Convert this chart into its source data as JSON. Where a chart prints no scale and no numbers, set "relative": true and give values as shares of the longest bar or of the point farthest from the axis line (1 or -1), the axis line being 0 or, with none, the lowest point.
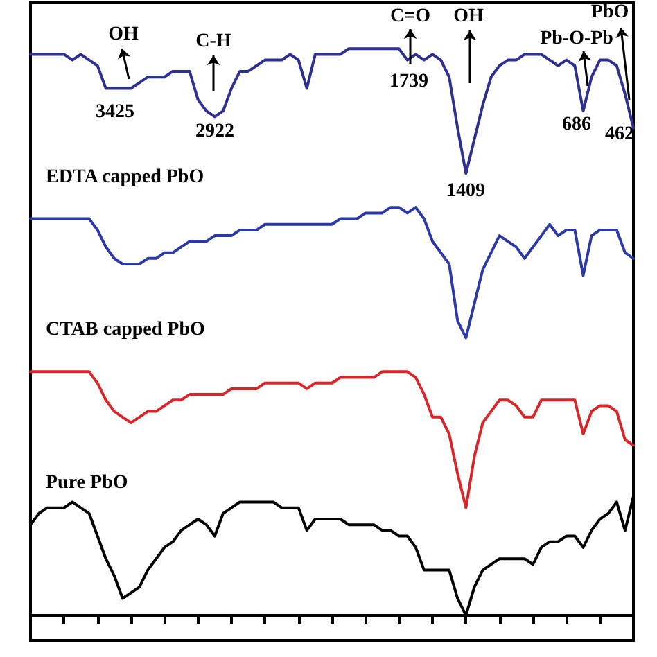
{
  "chart_data": {
    "type": "line",
    "relative": true,
    "categories": [
      null,
      null,
      null,
      null,
      null,
      null,
      null,
      null,
      null,
      null,
      null,
      null,
      null,
      null,
      null,
      null,
      null,
      null,
      null,
      null,
      null,
      null,
      null,
      null,
      null,
      null,
      null,
      null,
      null,
      null,
      null,
      null,
      null,
      null,
      null,
      null,
      null,
      null,
      null,
      null,
      null,
      null,
      null,
      null,
      null,
      null,
      null,
      null,
      null,
      null,
      null,
      null,
      null,
      null,
      null,
      null,
      null,
      null,
      null,
      null,
      null,
      null,
      null,
      null,
      null,
      null,
      null,
      null,
      null,
      null,
      null,
      null,
      null
    ],
    "grid": false,
    "legend": false,
    "line_style": "solid",
    "series": [
      {
        "color": "#2e3192",
        "values": [
          0.99,
          0.99,
          0.99,
          0.99,
          0.99,
          0.98,
          0.99,
          0.98,
          0.97,
          0.93,
          0.93,
          0.93,
          0.93,
          0.94,
          0.95,
          0.95,
          0.95,
          0.96,
          0.96,
          0.96,
          0.91,
          0.89,
          0.88,
          0.89,
          0.93,
          0.96,
          0.96,
          0.97,
          0.98,
          0.98,
          0.98,
          0.99,
          0.98,
          0.93,
          0.99,
          0.99,
          0.99,
          0.99,
          1.0,
          1.0,
          1.0,
          1.0,
          1.0,
          1.0,
          1.0,
          0.98,
          0.99,
          0.98,
          0.99,
          0.98,
          0.95,
          0.86,
          0.78,
          0.84,
          0.9,
          0.95,
          0.97,
          0.98,
          0.98,
          0.99,
          0.99,
          0.99,
          0.98,
          0.97,
          0.98,
          0.97,
          0.89,
          0.95,
          0.98,
          0.98,
          0.97,
          0.92,
          0.86
        ]
      },
      {
        "name": "EDTA capped PbO",
        "color": "#2b3aa6",
        "values": [
          0.7,
          0.7,
          0.7,
          0.7,
          0.7,
          0.7,
          0.7,
          0.7,
          0.68,
          0.65,
          0.63,
          0.62,
          0.62,
          0.62,
          0.63,
          0.63,
          0.64,
          0.64,
          0.65,
          0.66,
          0.66,
          0.66,
          0.67,
          0.67,
          0.67,
          0.68,
          0.68,
          0.68,
          0.69,
          0.69,
          0.69,
          0.69,
          0.69,
          0.69,
          0.69,
          0.69,
          0.69,
          0.7,
          0.7,
          0.7,
          0.71,
          0.71,
          0.71,
          0.72,
          0.72,
          0.71,
          0.72,
          0.7,
          0.66,
          0.64,
          0.62,
          0.52,
          0.49,
          0.55,
          0.61,
          0.64,
          0.67,
          0.66,
          0.65,
          0.63,
          0.65,
          0.67,
          0.69,
          0.67,
          0.68,
          0.68,
          0.6,
          0.67,
          0.68,
          0.68,
          0.68,
          0.64,
          0.63
        ]
      },
      {
        "name": "CTAB capped PbO",
        "color": "#d9262b",
        "values": [
          0.43,
          0.43,
          0.43,
          0.43,
          0.43,
          0.43,
          0.43,
          0.43,
          0.41,
          0.38,
          0.36,
          0.35,
          0.34,
          0.35,
          0.36,
          0.36,
          0.37,
          0.38,
          0.38,
          0.39,
          0.39,
          0.39,
          0.39,
          0.39,
          0.4,
          0.4,
          0.4,
          0.4,
          0.41,
          0.41,
          0.41,
          0.41,
          0.41,
          0.4,
          0.41,
          0.41,
          0.41,
          0.42,
          0.42,
          0.42,
          0.42,
          0.42,
          0.43,
          0.43,
          0.43,
          0.43,
          0.42,
          0.39,
          0.35,
          0.35,
          0.32,
          0.25,
          0.19,
          0.28,
          0.34,
          0.36,
          0.38,
          0.38,
          0.37,
          0.35,
          0.35,
          0.38,
          0.38,
          0.38,
          0.38,
          0.38,
          0.32,
          0.36,
          0.37,
          0.37,
          0.36,
          0.31,
          0.3
        ]
      },
      {
        "name": "Pure PbO",
        "color": "#000000",
        "values": [
          0.16,
          0.18,
          0.19,
          0.19,
          0.19,
          0.2,
          0.19,
          0.18,
          0.14,
          0.1,
          0.07,
          0.03,
          0.04,
          0.05,
          0.08,
          0.1,
          0.12,
          0.13,
          0.15,
          0.16,
          0.17,
          0.16,
          0.14,
          0.18,
          0.19,
          0.2,
          0.2,
          0.2,
          0.2,
          0.2,
          0.19,
          0.19,
          0.19,
          0.15,
          0.17,
          0.17,
          0.17,
          0.17,
          0.16,
          0.16,
          0.16,
          0.16,
          0.15,
          0.15,
          0.14,
          0.14,
          0.12,
          0.08,
          0.08,
          0.08,
          0.08,
          0.03,
          0.0,
          0.05,
          0.08,
          0.09,
          0.1,
          0.1,
          0.1,
          0.1,
          0.09,
          0.12,
          0.13,
          0.13,
          0.14,
          0.14,
          0.12,
          0.15,
          0.17,
          0.18,
          0.2,
          0.15,
          0.21
        ]
      }
    ],
    "annotations": [
      "OH",
      "C-H",
      "C=O",
      "OH",
      "Pb-O-Pb",
      "PbO",
      "3425",
      "2922",
      "1739",
      "1409",
      "686",
      "462"
    ]
  }
}
